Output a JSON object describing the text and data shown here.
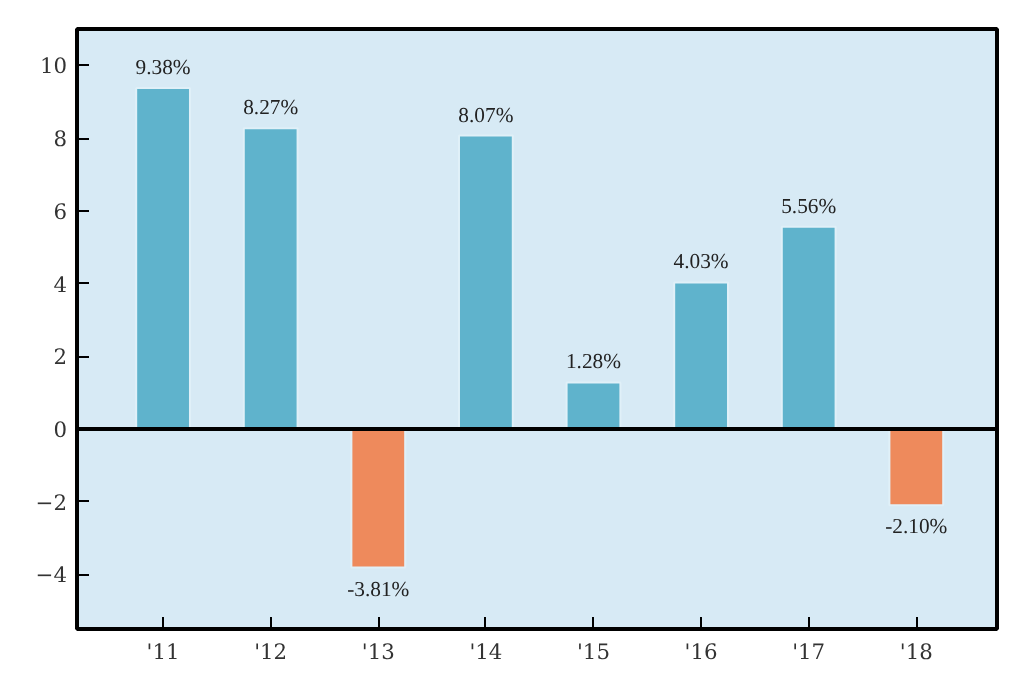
{
  "chart_data": {
    "type": "bar",
    "categories": [
      "'11",
      "'12",
      "'13",
      "'14",
      "'15",
      "'16",
      "'17",
      "'18"
    ],
    "values": [
      9.38,
      8.27,
      -3.81,
      8.07,
      1.28,
      4.03,
      5.56,
      -2.1
    ],
    "colors": [
      "#5fb3cc",
      "#5fb3cc",
      "#ee8a5c",
      "#5fb3cc",
      "#5fb3cc",
      "#5fb3cc",
      "#5fb3cc",
      "#ee8a5c"
    ],
    "value_labels": [
      "9.38%",
      "8.27%",
      "-3.81%",
      "8.07%",
      "1.28%",
      "4.03%",
      "5.56%",
      "-2.10%"
    ],
    "ylim": [
      -5.5,
      11
    ],
    "yticks": [
      {
        "value": -4,
        "label": "−4"
      },
      {
        "value": -2,
        "label": "−2"
      },
      0,
      2,
      4,
      6,
      8,
      10
    ],
    "ref_lines": [
      {
        "axis": "y",
        "value": 0,
        "color": "#000000"
      }
    ],
    "grid": false
  }
}
